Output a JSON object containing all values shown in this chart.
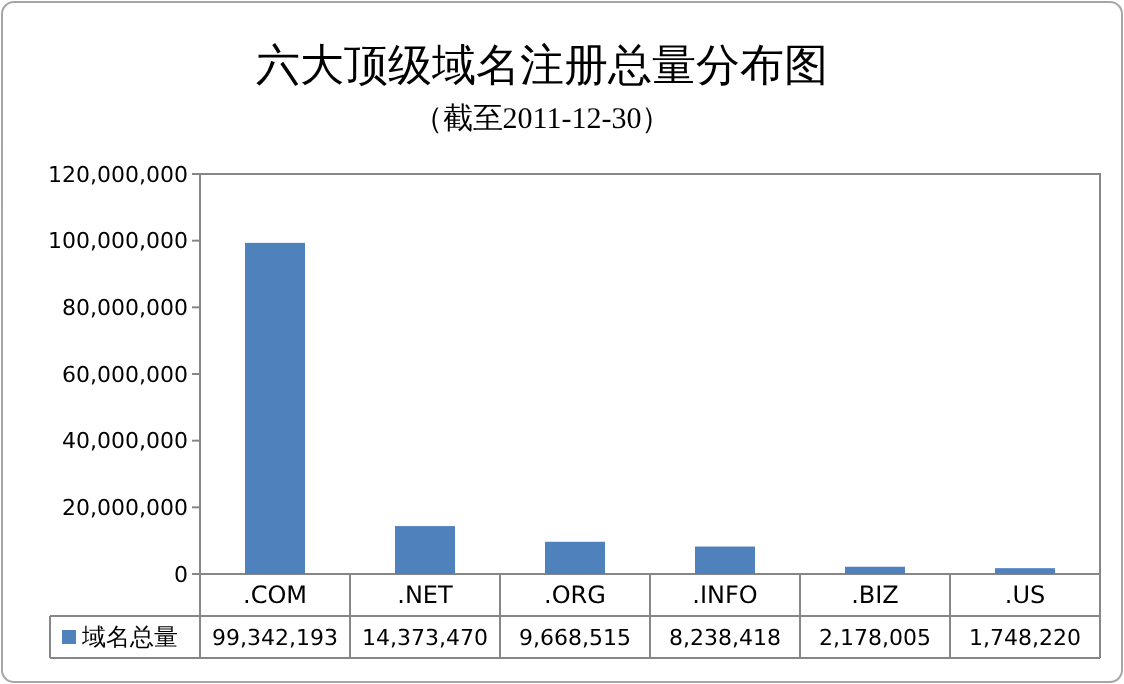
{
  "chart_data": {
    "type": "bar",
    "title": "六大顶级域名注册总量分布图",
    "subtitle": "（截至2011-12-30）",
    "categories": [
      ".COM",
      ".NET",
      ".ORG",
      ".INFO",
      ".BIZ",
      ".US"
    ],
    "series": [
      {
        "name": "域名总量",
        "color": "#4f81bd",
        "values": [
          99342193,
          14373470,
          9668515,
          8238418,
          2178005,
          1748220
        ],
        "value_labels": [
          "99,342,193",
          "14,373,470",
          "9,668,515",
          "8,238,418",
          "2,178,005",
          "1,748,220"
        ]
      }
    ],
    "ylim": [
      0,
      120000000
    ],
    "yticks": [
      {
        "value": 0,
        "label": "0"
      },
      {
        "value": 20000000,
        "label": "20,000,000"
      },
      {
        "value": 40000000,
        "label": "40,000,000"
      },
      {
        "value": 60000000,
        "label": "60,000,000"
      },
      {
        "value": 80000000,
        "label": "80,000,000"
      },
      {
        "value": 100000000,
        "label": "100,000,000"
      },
      {
        "value": 120000000,
        "label": "120,000,000"
      }
    ],
    "grid": false,
    "legend": "bottom"
  }
}
